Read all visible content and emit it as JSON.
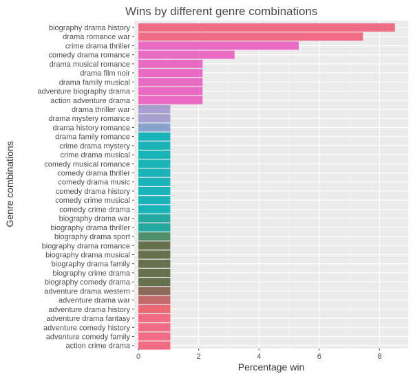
{
  "chart_data": {
    "type": "bar",
    "orientation": "horizontal",
    "title": "Wins by different genre combinations",
    "xlabel": "Percentage win",
    "ylabel": "Genre combinations",
    "xlim": [
      0,
      9
    ],
    "xticks": [
      0,
      2,
      4,
      6,
      8
    ],
    "grid": true,
    "legend": "none",
    "categories": [
      "biography drama history",
      "drama romance war",
      "crime drama thriller",
      "comedy drama romance",
      "drama musical romance",
      "drama film noir",
      "drama family musical",
      "adventure biography drama",
      "action adventure drama",
      "drama thriller war",
      "drama mystery romance",
      "drama history romance",
      "drama family romance",
      "crime drama mystery",
      "crime drama musical",
      "comedy musical romance",
      "comedy drama thriller",
      "comedy drama music",
      "comedy drama history",
      "comedy crime musical",
      "comedy crime drama",
      "biography drama war",
      "biography drama thriller",
      "biography drama sport",
      "biography drama romance",
      "biography drama musical",
      "biography drama family",
      "biography crime drama",
      "biography comedy drama",
      "adventure drama western",
      "adventure drama war",
      "adventure drama history",
      "adventure drama fantasy",
      "adventure comedy history",
      "adventure comedy family",
      "action crime drama"
    ],
    "values": [
      8.51,
      7.45,
      5.32,
      3.19,
      2.13,
      2.13,
      2.13,
      2.13,
      2.13,
      1.06,
      1.06,
      1.06,
      1.06,
      1.06,
      1.06,
      1.06,
      1.06,
      1.06,
      1.06,
      1.06,
      1.06,
      1.06,
      1.06,
      1.06,
      1.06,
      1.06,
      1.06,
      1.06,
      1.06,
      1.06,
      1.06,
      1.06,
      1.06,
      1.06,
      1.06,
      1.06
    ],
    "colors": [
      "#f06b84",
      "#f06b84",
      "#ea6bc4",
      "#ea6bc4",
      "#ea6bc4",
      "#ea6bc4",
      "#ea6bc4",
      "#ea6bc4",
      "#ea6bc4",
      "#a79fcf",
      "#a79fcf",
      "#8aa3cc",
      "#19b3b8",
      "#19b3b8",
      "#19b3b8",
      "#19b3b8",
      "#19b3b8",
      "#19b3b8",
      "#19b3b8",
      "#19b3b8",
      "#19b3b8",
      "#24a8a0",
      "#24a8a0",
      "#4f8f6c",
      "#67714d",
      "#67714d",
      "#67714d",
      "#67714d",
      "#67714d",
      "#8e6a5a",
      "#c46a6a",
      "#ea6a74",
      "#f06b84",
      "#f06b84",
      "#f06b84",
      "#f06b84"
    ]
  }
}
